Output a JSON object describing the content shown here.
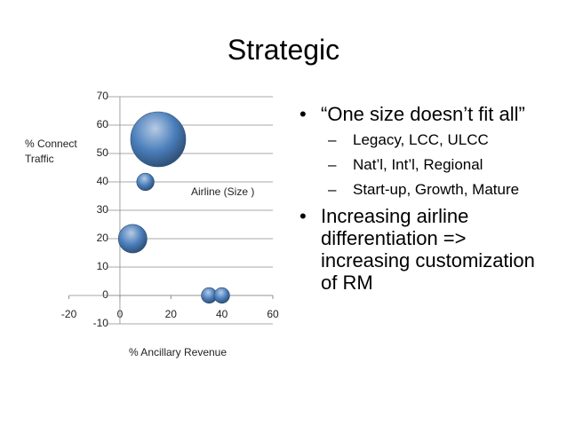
{
  "title": "Strategic",
  "chart_data": {
    "type": "bubble",
    "xlabel": "% Ancillary Revenue",
    "ylabel": "% Connect Traffic",
    "xlim": [
      -20,
      60
    ],
    "ylim": [
      -10,
      70
    ],
    "xticks": [
      -20,
      0,
      20,
      40,
      60
    ],
    "yticks": [
      -10,
      0,
      10,
      20,
      30,
      40,
      50,
      60,
      70
    ],
    "grid": true,
    "series": [
      {
        "name": "Airline (Size )",
        "color": "#4a7ebb",
        "x": [
          15,
          10,
          5,
          35,
          40
        ],
        "values": [
          55,
          40,
          20,
          0,
          0
        ],
        "sizes": [
          100,
          10,
          27,
          8,
          8
        ]
      }
    ]
  },
  "bullets": [
    {
      "text": "“One size doesn’t fit all”",
      "sub": [
        "Legacy, LCC, ULCC",
        "Nat’l, Int’l, Regional",
        "Start-up, Growth, Mature"
      ]
    },
    {
      "text": "Increasing airline differentiation  => increasing customization of RM"
    }
  ]
}
